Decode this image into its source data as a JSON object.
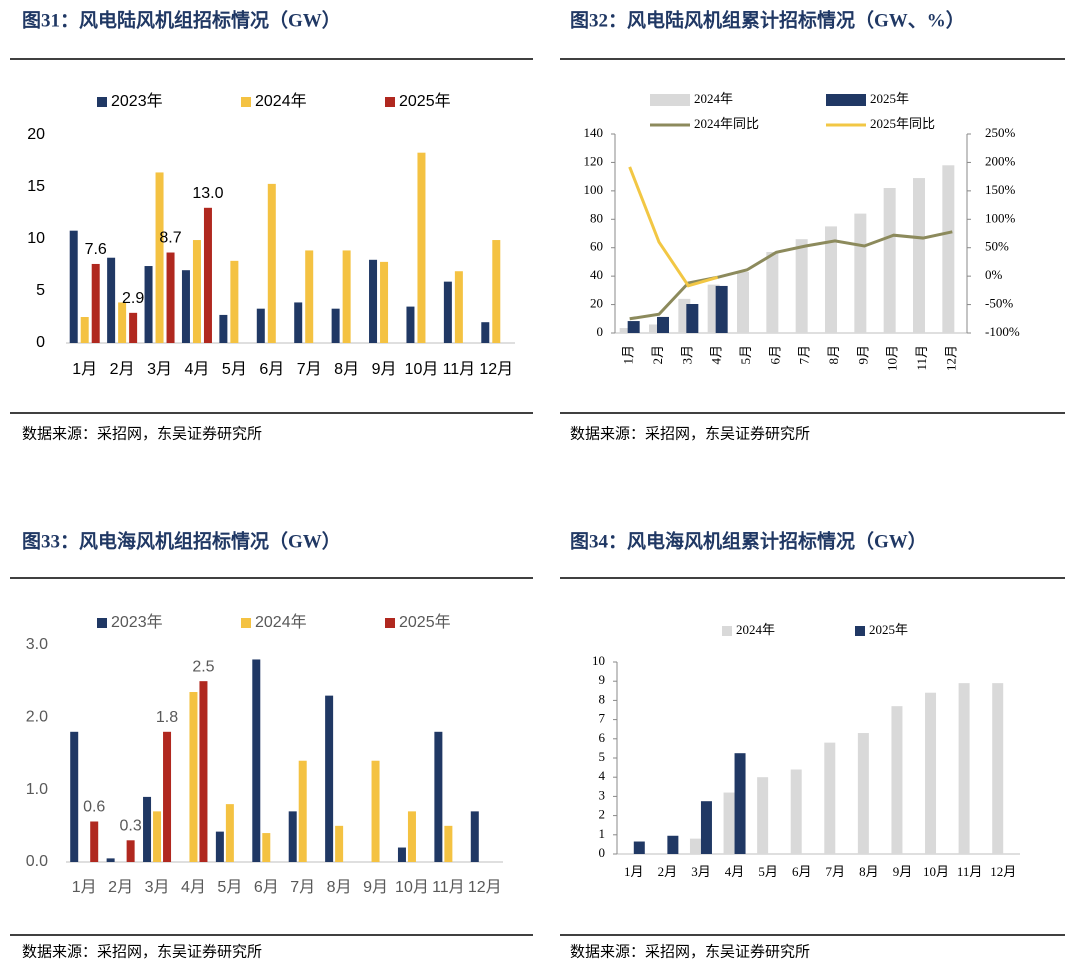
{
  "chart_data": [
    {
      "type": "bar",
      "title": "图31：风电陆风机组招标情况（GW）",
      "source": "数据来源：采招网，东吴证券研究所",
      "categories": [
        "1月",
        "2月",
        "3月",
        "4月",
        "5月",
        "6月",
        "7月",
        "8月",
        "9月",
        "10月",
        "11月",
        "12月"
      ],
      "series": [
        {
          "name": "2023年",
          "color": "#203864",
          "values": [
            10.8,
            8.2,
            7.4,
            7.0,
            2.7,
            3.3,
            3.9,
            3.3,
            8.0,
            3.5,
            5.9,
            2.0
          ]
        },
        {
          "name": "2024年",
          "color": "#f4c242",
          "values": [
            2.5,
            3.9,
            16.4,
            9.9,
            7.9,
            15.3,
            8.9,
            8.9,
            7.8,
            18.3,
            6.9,
            9.9
          ]
        },
        {
          "name": "2025年",
          "color": "#b0281f",
          "values": [
            7.6,
            2.9,
            8.7,
            13.0,
            null,
            null,
            null,
            null,
            null,
            null,
            null,
            null
          ],
          "value_labels": [
            "7.6",
            "2.9",
            "8.7",
            "13.0",
            null,
            null,
            null,
            null,
            null,
            null,
            null,
            null
          ]
        }
      ],
      "ylim": [
        0,
        20
      ],
      "yticks": [
        0,
        5,
        10,
        15,
        20
      ]
    },
    {
      "type": "combo",
      "title": "图32：风电陆风机组累计招标情况（GW、%）",
      "source": "数据来源：采招网，东吴证券研究所",
      "categories": [
        "1月",
        "2月",
        "3月",
        "4月",
        "5月",
        "6月",
        "7月",
        "8月",
        "9月",
        "10月",
        "11月",
        "12月"
      ],
      "series": [
        {
          "name": "2024年",
          "type": "bar",
          "color": "#d9d9d9",
          "values": [
            3.5,
            6,
            24,
            34,
            43,
            57,
            66,
            75,
            84,
            102,
            109,
            118
          ]
        },
        {
          "name": "2025年",
          "type": "bar",
          "color": "#203864",
          "values": [
            8.4,
            11.3,
            20.4,
            33.1,
            null,
            null,
            null,
            null,
            null,
            null,
            null,
            null
          ]
        },
        {
          "name": "2024年同比",
          "type": "line",
          "axis": "y2",
          "color": "#8c8a5c",
          "values": [
            -75,
            -67,
            -12,
            -2,
            11,
            42,
            53,
            62,
            53,
            72,
            67,
            78
          ]
        },
        {
          "name": "2025年同比",
          "type": "line",
          "axis": "y2",
          "color": "#f2c744",
          "values": [
            192,
            60,
            -17,
            -2,
            null,
            null,
            null,
            null,
            null,
            null,
            null,
            null
          ]
        }
      ],
      "ylim": [
        0,
        140
      ],
      "yticks": [
        0,
        20,
        40,
        60,
        80,
        100,
        120,
        140
      ],
      "y2lim": [
        -100,
        250
      ],
      "y2ticks": [
        {
          "value": -100,
          "label": "-100%"
        },
        {
          "value": -50,
          "label": "-50%"
        },
        {
          "value": 0,
          "label": "0%"
        },
        {
          "value": 50,
          "label": "50%"
        },
        {
          "value": 100,
          "label": "100%"
        },
        {
          "value": 150,
          "label": "150%"
        },
        {
          "value": 200,
          "label": "200%"
        },
        {
          "value": 250,
          "label": "250%"
        }
      ]
    },
    {
      "type": "bar",
      "title": "图33：风电海风机组招标情况（GW）",
      "source": "数据来源：采招网，东吴证券研究所",
      "categories": [
        "1月",
        "2月",
        "3月",
        "4月",
        "5月",
        "6月",
        "7月",
        "8月",
        "9月",
        "10月",
        "11月",
        "12月"
      ],
      "series": [
        {
          "name": "2023年",
          "color": "#203864",
          "values": [
            1.8,
            0.05,
            0.9,
            null,
            0.42,
            2.8,
            0.7,
            2.3,
            null,
            0.2,
            1.8,
            0.7
          ]
        },
        {
          "name": "2024年",
          "color": "#f4c242",
          "values": [
            null,
            null,
            0.7,
            2.35,
            0.8,
            0.4,
            1.4,
            0.5,
            1.4,
            0.7,
            0.5,
            null
          ]
        },
        {
          "name": "2025年",
          "color": "#b0281f",
          "values": [
            0.56,
            0.3,
            1.8,
            2.5,
            null,
            null,
            null,
            null,
            null,
            null,
            null,
            null
          ],
          "value_labels": [
            "0.6",
            "0.3",
            "1.8",
            "2.5",
            null,
            null,
            null,
            null,
            null,
            null,
            null,
            null
          ]
        }
      ],
      "ylim": [
        0,
        3
      ],
      "yticks": [
        {
          "value": 0,
          "label": "0.0"
        },
        {
          "value": 1,
          "label": "1.0"
        },
        {
          "value": 2,
          "label": "2.0"
        },
        {
          "value": 3,
          "label": "3.0"
        }
      ]
    },
    {
      "type": "bar",
      "title": "图34：风电海风机组累计招标情况（GW）",
      "source": "数据来源：采招网，东吴证券研究所",
      "categories": [
        "1月",
        "2月",
        "3月",
        "4月",
        "5月",
        "6月",
        "7月",
        "8月",
        "9月",
        "10月",
        "11月",
        "12月"
      ],
      "series": [
        {
          "name": "2024年",
          "color": "#d9d9d9",
          "values": [
            null,
            null,
            0.8,
            3.2,
            4.0,
            4.4,
            5.8,
            6.3,
            7.7,
            8.4,
            8.9,
            8.9
          ]
        },
        {
          "name": "2025年",
          "color": "#203864",
          "values": [
            0.65,
            0.95,
            2.75,
            5.25,
            null,
            null,
            null,
            null,
            null,
            null,
            null,
            null
          ]
        }
      ],
      "ylim": [
        0,
        10
      ],
      "yticks": [
        0,
        1,
        2,
        3,
        4,
        5,
        6,
        7,
        8,
        9,
        10
      ]
    }
  ]
}
